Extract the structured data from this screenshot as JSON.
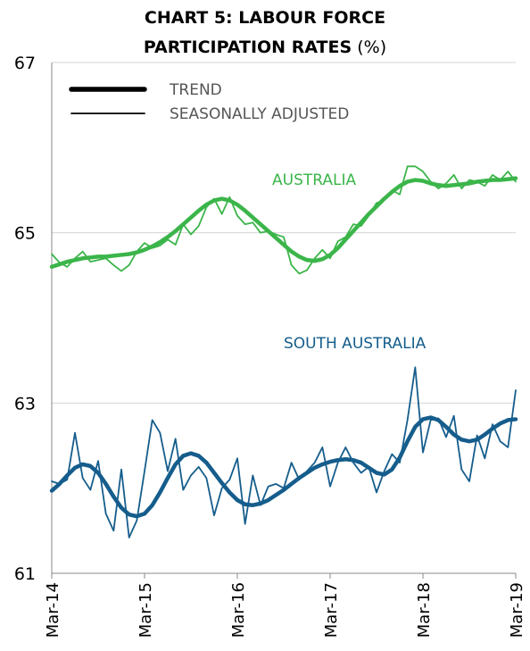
{
  "chart_data": {
    "type": "line",
    "title": "CHART 5: LABOUR FORCE PARTICIPATION RATES",
    "unit": "(%)",
    "legend": [
      "TREND",
      "SEASONALLY ADJUSTED"
    ],
    "legend_position": "upper left",
    "categories": [
      "Mar-14",
      null,
      null,
      null,
      null,
      null,
      null,
      null,
      null,
      null,
      null,
      null,
      "Mar-15",
      null,
      null,
      null,
      null,
      null,
      null,
      null,
      null,
      null,
      null,
      null,
      "Mar-16",
      null,
      null,
      null,
      null,
      null,
      null,
      null,
      null,
      null,
      null,
      null,
      "Mar-17",
      null,
      null,
      null,
      null,
      null,
      null,
      null,
      null,
      null,
      null,
      null,
      "Mar-18",
      null,
      null,
      null,
      null,
      null,
      null,
      null,
      null,
      null,
      null,
      null,
      "Mar-19"
    ],
    "ylim": [
      61,
      67
    ],
    "yticks": [
      61,
      63,
      65,
      67
    ],
    "grid": true,
    "regions": [
      {
        "name": "AUSTRALIA",
        "color": "#3bb54a",
        "trend": [
          64.6,
          64.63,
          64.66,
          64.68,
          64.7,
          64.71,
          64.72,
          64.72,
          64.73,
          64.74,
          64.75,
          64.77,
          64.8,
          64.84,
          64.89,
          64.95,
          65.02,
          65.1,
          65.18,
          65.26,
          65.33,
          65.38,
          65.4,
          65.38,
          65.33,
          65.26,
          65.18,
          65.1,
          65.02,
          64.94,
          64.86,
          64.78,
          64.72,
          64.68,
          64.67,
          64.69,
          64.74,
          64.82,
          64.92,
          65.02,
          65.12,
          65.22,
          65.31,
          65.4,
          65.48,
          65.55,
          65.6,
          65.62,
          65.61,
          65.58,
          65.56,
          65.55,
          65.56,
          65.57,
          65.58,
          65.6,
          65.61,
          65.62,
          65.62,
          65.63,
          65.64
        ],
        "seasonally_adjusted": [
          64.75,
          64.65,
          64.6,
          64.7,
          64.78,
          64.66,
          64.68,
          64.7,
          64.62,
          64.55,
          64.62,
          64.78,
          64.88,
          64.82,
          64.85,
          64.92,
          64.86,
          65.1,
          64.98,
          65.08,
          65.3,
          65.4,
          65.22,
          65.42,
          65.2,
          65.1,
          65.12,
          65.0,
          65.02,
          64.98,
          64.95,
          64.62,
          64.52,
          64.56,
          64.7,
          64.8,
          64.7,
          64.9,
          64.95,
          65.1,
          65.08,
          65.2,
          65.35,
          65.38,
          65.5,
          65.45,
          65.78,
          65.78,
          65.72,
          65.6,
          65.52,
          65.58,
          65.68,
          65.52,
          65.62,
          65.6,
          65.55,
          65.68,
          65.62,
          65.72,
          65.6
        ]
      },
      {
        "name": "SOUTH AUSTRALIA",
        "color": "#155d8c",
        "trend": [
          61.97,
          62.05,
          62.15,
          62.24,
          62.28,
          62.26,
          62.18,
          62.05,
          61.9,
          61.77,
          61.69,
          61.67,
          61.7,
          61.8,
          61.95,
          62.12,
          62.28,
          62.38,
          62.41,
          62.38,
          62.3,
          62.18,
          62.06,
          61.95,
          61.86,
          61.81,
          61.8,
          61.82,
          61.86,
          61.92,
          61.98,
          62.05,
          62.12,
          62.18,
          62.24,
          62.28,
          62.31,
          62.33,
          62.34,
          62.33,
          62.3,
          62.24,
          62.18,
          62.16,
          62.22,
          62.36,
          62.55,
          62.72,
          62.81,
          62.83,
          62.8,
          62.72,
          62.63,
          62.57,
          62.55,
          62.57,
          62.63,
          62.7,
          62.76,
          62.8,
          62.81
        ],
        "seasonally_adjusted": [
          62.08,
          62.05,
          62.1,
          62.65,
          62.12,
          61.98,
          62.32,
          61.7,
          61.5,
          62.22,
          61.42,
          61.62,
          62.2,
          62.8,
          62.65,
          62.2,
          62.58,
          61.98,
          62.15,
          62.25,
          62.12,
          61.68,
          62.0,
          62.1,
          62.35,
          61.58,
          62.15,
          61.8,
          62.02,
          62.05,
          62.0,
          62.3,
          62.1,
          62.2,
          62.3,
          62.48,
          62.02,
          62.3,
          62.48,
          62.3,
          62.18,
          62.25,
          61.95,
          62.2,
          62.4,
          62.3,
          62.8,
          63.42,
          62.42,
          62.8,
          62.82,
          62.6,
          62.85,
          62.22,
          62.08,
          62.62,
          62.35,
          62.75,
          62.55,
          62.48,
          63.15
        ]
      }
    ]
  }
}
